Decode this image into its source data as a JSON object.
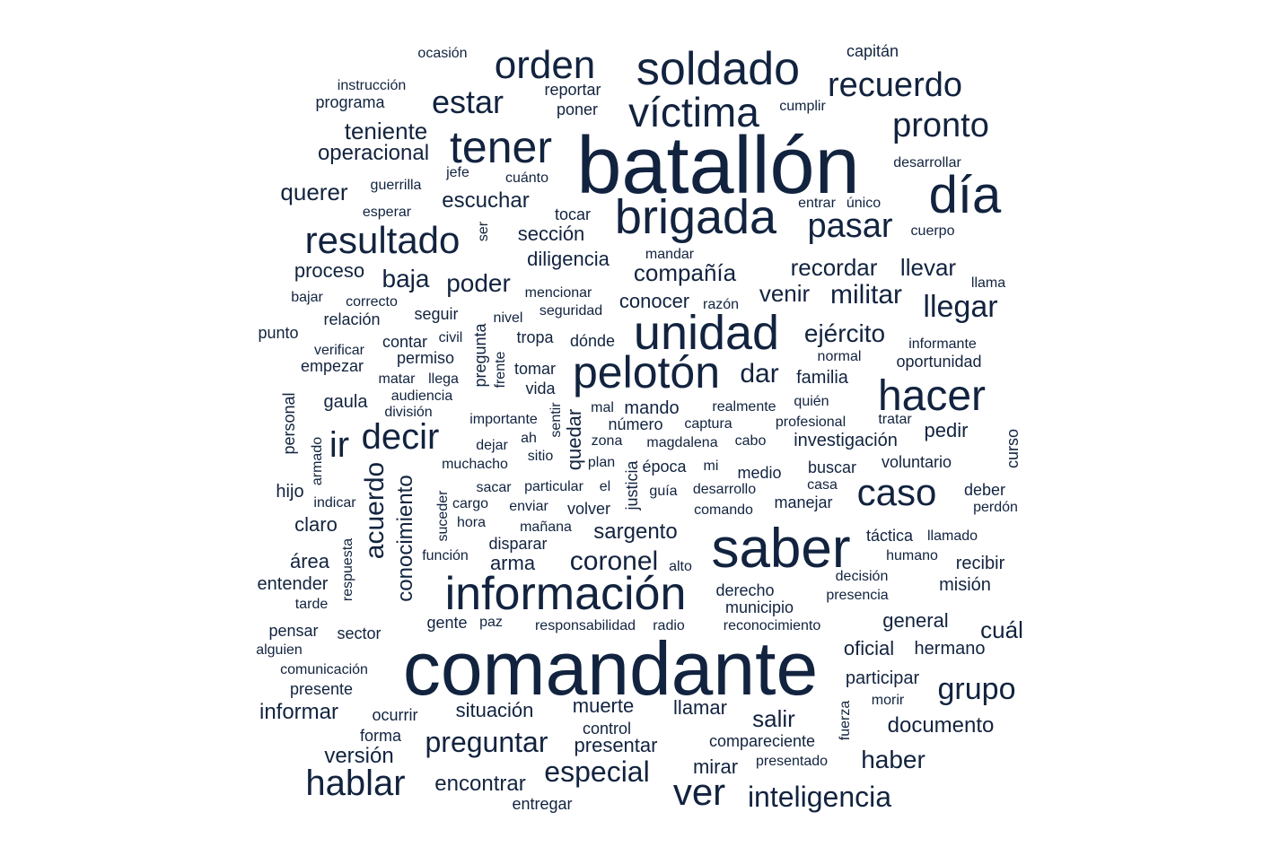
{
  "color": "#12233f",
  "words": [
    {
      "text": "batallón",
      "weight": 100
    },
    {
      "text": "comandante",
      "weight": 92
    },
    {
      "text": "saber",
      "weight": 68
    },
    {
      "text": "información",
      "weight": 60
    },
    {
      "text": "brigada",
      "weight": 58
    },
    {
      "text": "unidad",
      "weight": 55
    },
    {
      "text": "soldado",
      "weight": 54
    },
    {
      "text": "día",
      "weight": 54
    },
    {
      "text": "pelotón",
      "weight": 52
    },
    {
      "text": "hacer",
      "weight": 50
    },
    {
      "text": "tener",
      "weight": 48
    },
    {
      "text": "caso",
      "weight": 42
    },
    {
      "text": "víctima",
      "weight": 44
    },
    {
      "text": "orden",
      "weight": 42
    },
    {
      "text": "ver",
      "weight": 42
    },
    {
      "text": "resultado",
      "weight": 42
    },
    {
      "text": "decir",
      "weight": 40
    },
    {
      "text": "hablar",
      "weight": 40
    },
    {
      "text": "pronto",
      "weight": 38
    },
    {
      "text": "recuerdo",
      "weight": 38
    },
    {
      "text": "pasar",
      "weight": 38
    },
    {
      "text": "ir",
      "weight": 40
    },
    {
      "text": "estar",
      "weight": 36
    },
    {
      "text": "grupo",
      "weight": 34
    },
    {
      "text": "llegar",
      "weight": 34
    },
    {
      "text": "inteligencia",
      "weight": 32
    },
    {
      "text": "preguntar",
      "weight": 32
    },
    {
      "text": "especial",
      "weight": 32
    },
    {
      "text": "militar",
      "weight": 30
    },
    {
      "text": "coronel",
      "weight": 30
    },
    {
      "text": "acuerdo",
      "weight": 30
    },
    {
      "text": "dar",
      "weight": 30
    },
    {
      "text": "poder",
      "weight": 28
    },
    {
      "text": "ejército",
      "weight": 28
    },
    {
      "text": "haber",
      "weight": 28
    },
    {
      "text": "baja",
      "weight": 28
    },
    {
      "text": "querer",
      "weight": 26
    },
    {
      "text": "teniente",
      "weight": 26
    },
    {
      "text": "compañía",
      "weight": 26
    },
    {
      "text": "recordar",
      "weight": 26
    },
    {
      "text": "venir",
      "weight": 26
    },
    {
      "text": "llevar",
      "weight": 26
    },
    {
      "text": "escuchar",
      "weight": 24
    },
    {
      "text": "salir",
      "weight": 26
    },
    {
      "text": "cuál",
      "weight": 26
    },
    {
      "text": "documento",
      "weight": 24
    },
    {
      "text": "versión",
      "weight": 24
    },
    {
      "text": "conocimiento",
      "weight": 24
    },
    {
      "text": "sargento",
      "weight": 24
    },
    {
      "text": "encontrar",
      "weight": 24
    },
    {
      "text": "informar",
      "weight": 24
    },
    {
      "text": "operacional",
      "weight": 24
    },
    {
      "text": "sección",
      "weight": 22
    },
    {
      "text": "diligencia",
      "weight": 22
    },
    {
      "text": "proceso",
      "weight": 22
    },
    {
      "text": "conocer",
      "weight": 22
    },
    {
      "text": "general",
      "weight": 22
    },
    {
      "text": "oficial",
      "weight": 22
    },
    {
      "text": "situación",
      "weight": 22
    },
    {
      "text": "muerte",
      "weight": 22
    },
    {
      "text": "llamar",
      "weight": 22
    },
    {
      "text": "mirar",
      "weight": 22
    },
    {
      "text": "área",
      "weight": 22
    },
    {
      "text": "claro",
      "weight": 22
    },
    {
      "text": "arma",
      "weight": 22
    },
    {
      "text": "quedar",
      "weight": 22
    },
    {
      "text": "pedir",
      "weight": 22
    },
    {
      "text": "mando",
      "weight": 20
    },
    {
      "text": "investigación",
      "weight": 20
    },
    {
      "text": "familia",
      "weight": 20
    },
    {
      "text": "presentar",
      "weight": 22
    },
    {
      "text": "misión",
      "weight": 20
    },
    {
      "text": "recibir",
      "weight": 20
    },
    {
      "text": "hermano",
      "weight": 20
    },
    {
      "text": "participar",
      "weight": 20
    },
    {
      "text": "gaula",
      "weight": 20
    },
    {
      "text": "hijo",
      "weight": 20
    },
    {
      "text": "entender",
      "weight": 20
    },
    {
      "text": "tocar",
      "weight": 18
    },
    {
      "text": "seguir",
      "weight": 18
    },
    {
      "text": "número",
      "weight": 18
    },
    {
      "text": "volver",
      "weight": 18
    },
    {
      "text": "disparar",
      "weight": 18
    },
    {
      "text": "tomar",
      "weight": 18
    },
    {
      "text": "permiso",
      "weight": 18
    },
    {
      "text": "relación",
      "weight": 18
    },
    {
      "text": "derecho",
      "weight": 18
    },
    {
      "text": "buscar",
      "weight": 18
    },
    {
      "text": "voluntario",
      "weight": 18
    },
    {
      "text": "deber",
      "weight": 18
    },
    {
      "text": "manejar",
      "weight": 18
    },
    {
      "text": "justicia",
      "weight": 18
    },
    {
      "text": "pregunta",
      "weight": 18
    },
    {
      "text": "personal",
      "weight": 18
    },
    {
      "text": "vida",
      "weight": 18
    },
    {
      "text": "medio",
      "weight": 18
    },
    {
      "text": "época",
      "weight": 18
    },
    {
      "text": "gente",
      "weight": 18
    },
    {
      "text": "sector",
      "weight": 18
    },
    {
      "text": "pensar",
      "weight": 18
    },
    {
      "text": "ocurrir",
      "weight": 18
    },
    {
      "text": "forma",
      "weight": 18
    },
    {
      "text": "control",
      "weight": 18
    },
    {
      "text": "compareciente",
      "weight": 18
    },
    {
      "text": "entregar",
      "weight": 18
    },
    {
      "text": "municipio",
      "weight": 18
    },
    {
      "text": "presente",
      "weight": 18
    },
    {
      "text": "táctica",
      "weight": 18
    },
    {
      "text": "oportunidad",
      "weight": 18
    },
    {
      "text": "curso",
      "weight": 18
    },
    {
      "text": "dónde",
      "weight": 18
    },
    {
      "text": "contar",
      "weight": 18
    },
    {
      "text": "empezar",
      "weight": 18
    },
    {
      "text": "tropa",
      "weight": 18
    },
    {
      "text": "punto",
      "weight": 18
    },
    {
      "text": "programa",
      "weight": 18
    },
    {
      "text": "reportar",
      "weight": 18
    },
    {
      "text": "poner",
      "weight": 18
    },
    {
      "text": "capitán",
      "weight": 18
    },
    {
      "text": "instrucción",
      "weight": 16
    },
    {
      "text": "cuánto",
      "weight": 16
    },
    {
      "text": "jefe",
      "weight": 16
    },
    {
      "text": "guerrilla",
      "weight": 16
    },
    {
      "text": "esperar",
      "weight": 16
    },
    {
      "text": "ser",
      "weight": 16
    },
    {
      "text": "mandar",
      "weight": 16
    },
    {
      "text": "bajar",
      "weight": 16
    },
    {
      "text": "correcto",
      "weight": 16
    },
    {
      "text": "mencionar",
      "weight": 16
    },
    {
      "text": "seguridad",
      "weight": 16
    },
    {
      "text": "nivel",
      "weight": 16
    },
    {
      "text": "civil",
      "weight": 16
    },
    {
      "text": "verificar",
      "weight": 16
    },
    {
      "text": "matar",
      "weight": 16
    },
    {
      "text": "llega",
      "weight": 16
    },
    {
      "text": "audiencia",
      "weight": 16
    },
    {
      "text": "división",
      "weight": 16
    },
    {
      "text": "importante",
      "weight": 16
    },
    {
      "text": "sentir",
      "weight": 16
    },
    {
      "text": "frente",
      "weight": 16
    },
    {
      "text": "ah",
      "weight": 16
    },
    {
      "text": "dejar",
      "weight": 16
    },
    {
      "text": "sitio",
      "weight": 16
    },
    {
      "text": "muchacho",
      "weight": 16
    },
    {
      "text": "zona",
      "weight": 16
    },
    {
      "text": "plan",
      "weight": 16
    },
    {
      "text": "magdalena",
      "weight": 16
    },
    {
      "text": "cabo",
      "weight": 16
    },
    {
      "text": "mi",
      "weight": 16
    },
    {
      "text": "el",
      "weight": 16
    },
    {
      "text": "particular",
      "weight": 16
    },
    {
      "text": "sacar",
      "weight": 16
    },
    {
      "text": "cargo",
      "weight": 16
    },
    {
      "text": "enviar",
      "weight": 16
    },
    {
      "text": "mañana",
      "weight": 16
    },
    {
      "text": "guía",
      "weight": 16
    },
    {
      "text": "desarrollo",
      "weight": 16
    },
    {
      "text": "comando",
      "weight": 16
    },
    {
      "text": "casa",
      "weight": 16
    },
    {
      "text": "perdón",
      "weight": 16
    },
    {
      "text": "llamado",
      "weight": 16
    },
    {
      "text": "humano",
      "weight": 16
    },
    {
      "text": "decisión",
      "weight": 16
    },
    {
      "text": "presencia",
      "weight": 16
    },
    {
      "text": "alto",
      "weight": 16
    },
    {
      "text": "función",
      "weight": 16
    },
    {
      "text": "hora",
      "weight": 16
    },
    {
      "text": "suceder",
      "weight": 16
    },
    {
      "text": "respuesta",
      "weight": 16
    },
    {
      "text": "indicar",
      "weight": 16
    },
    {
      "text": "armado",
      "weight": 16
    },
    {
      "text": "tarde",
      "weight": 16
    },
    {
      "text": "paz",
      "weight": 16
    },
    {
      "text": "responsabilidad",
      "weight": 16
    },
    {
      "text": "radio",
      "weight": 16
    },
    {
      "text": "reconocimiento",
      "weight": 16
    },
    {
      "text": "alguien",
      "weight": 16
    },
    {
      "text": "comunicación",
      "weight": 16
    },
    {
      "text": "morir",
      "weight": 16
    },
    {
      "text": "fuerza",
      "weight": 16
    },
    {
      "text": "presentado",
      "weight": 16
    },
    {
      "text": "mal",
      "weight": 16
    },
    {
      "text": "realmente",
      "weight": 16
    },
    {
      "text": "quién",
      "weight": 16
    },
    {
      "text": "captura",
      "weight": 16
    },
    {
      "text": "profesional",
      "weight": 16
    },
    {
      "text": "tratar",
      "weight": 16
    },
    {
      "text": "normal",
      "weight": 16
    },
    {
      "text": "informante",
      "weight": 16
    },
    {
      "text": "razón",
      "weight": 16
    },
    {
      "text": "llama",
      "weight": 16
    },
    {
      "text": "cuerpo",
      "weight": 16
    },
    {
      "text": "entrar",
      "weight": 16
    },
    {
      "text": "único",
      "weight": 16
    },
    {
      "text": "desarrollar",
      "weight": 16
    },
    {
      "text": "cumplir",
      "weight": 16
    },
    {
      "text": "ocasión",
      "weight": 16
    }
  ]
}
